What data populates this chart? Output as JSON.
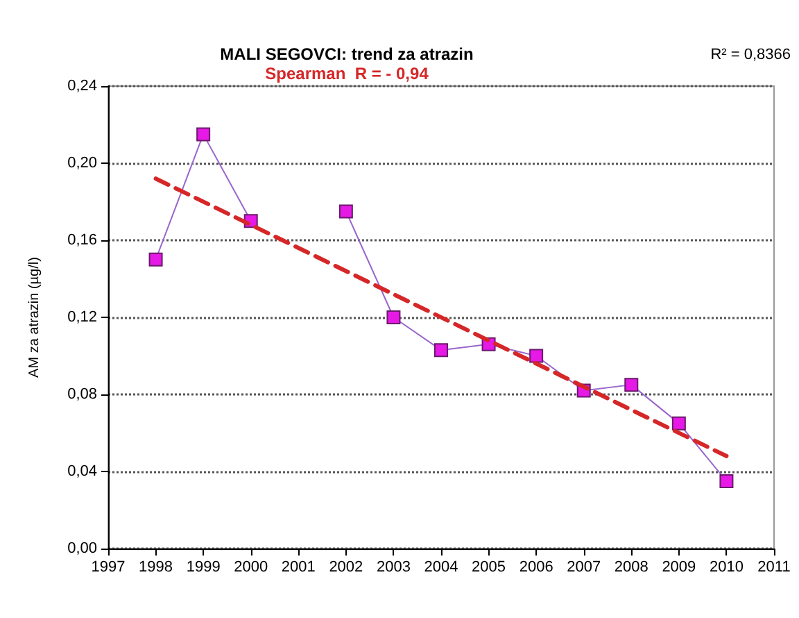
{
  "chart_data": {
    "type": "line",
    "title": "MALI SEGOVCI: trend za atrazin",
    "subtitle": "Spearman  R = - 0,94",
    "ylabel": "AM za atrazin (µg/l)",
    "annotations": [
      "R² = 0,8366"
    ],
    "x": [
      1998,
      1999,
      2000,
      2001,
      2002,
      2003,
      2004,
      2005,
      2006,
      2007,
      2008,
      2009,
      2010
    ],
    "series": [
      {
        "color": "#9966cc",
        "values": [
          0.15,
          0.215,
          0.17,
          null,
          0.175,
          0.12,
          0.103,
          0.106,
          0.1,
          0.082,
          0.085,
          0.065,
          0.035
        ],
        "marker": "square",
        "line_style": "solid"
      },
      {
        "type": "line",
        "color": "#d62728",
        "x": [
          1998,
          2010
        ],
        "values": [
          0.192,
          0.048
        ],
        "marker": "none",
        "line_style": "dashed"
      }
    ],
    "xlim": [
      1997,
      2011
    ],
    "xticks": [
      1997,
      1998,
      1999,
      2000,
      2001,
      2002,
      2003,
      2004,
      2005,
      2006,
      2007,
      2008,
      2009,
      2010,
      2011
    ],
    "ylim": [
      0,
      0.24
    ],
    "yticks": [
      {
        "value": 0,
        "label": "0,00"
      },
      {
        "value": 0.04,
        "label": "0,04"
      },
      {
        "value": 0.08,
        "label": "0,08"
      },
      {
        "value": 0.12,
        "label": "0,12"
      },
      {
        "value": 0.16,
        "label": "0,16"
      },
      {
        "value": 0.2,
        "label": "0,20"
      },
      {
        "value": 0.24,
        "label": "0,24"
      }
    ],
    "grid": "y"
  }
}
